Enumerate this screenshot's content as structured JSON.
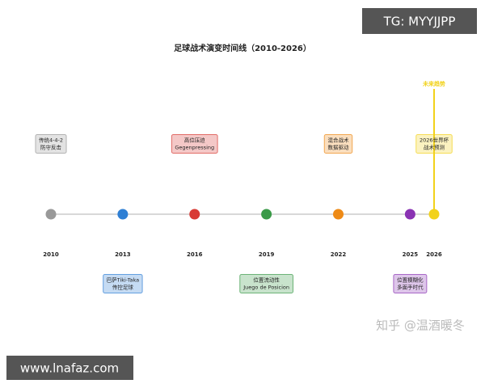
{
  "title": "足球战术演变时间线（2010-2026）",
  "annotation": "未来趋势",
  "annotation_color": "#f2d21b",
  "events": [
    {
      "year": 2010,
      "label": [
        "传统4-4-2",
        "防守反击"
      ],
      "color": "#999999"
    },
    {
      "year": 2013,
      "label": [
        "巴萨Tiki-Taka",
        "传控足球"
      ],
      "color": "#2f7fd4"
    },
    {
      "year": 2016,
      "label": [
        "高位压迫",
        "Gegenpressing"
      ],
      "color": "#d83b35"
    },
    {
      "year": 2019,
      "label": [
        "位置流动性",
        "Juego de Posicion"
      ],
      "color": "#3a9a48"
    },
    {
      "year": 2022,
      "label": [
        "混合战术",
        "数据驱动"
      ],
      "color": "#ee8a16"
    },
    {
      "year": 2025,
      "label": [
        "位置模糊化",
        "多面手时代"
      ],
      "color": "#8a33b3"
    },
    {
      "year": 2026,
      "label": [
        "2026世界杯",
        "战术预测"
      ],
      "color": "#f2d21b"
    }
  ],
  "watermarks": {
    "top_right": "TG: MYYJJPP",
    "bottom_left": "www.lnafaz.com",
    "zhihu": "知乎 @温酒暖冬"
  }
}
